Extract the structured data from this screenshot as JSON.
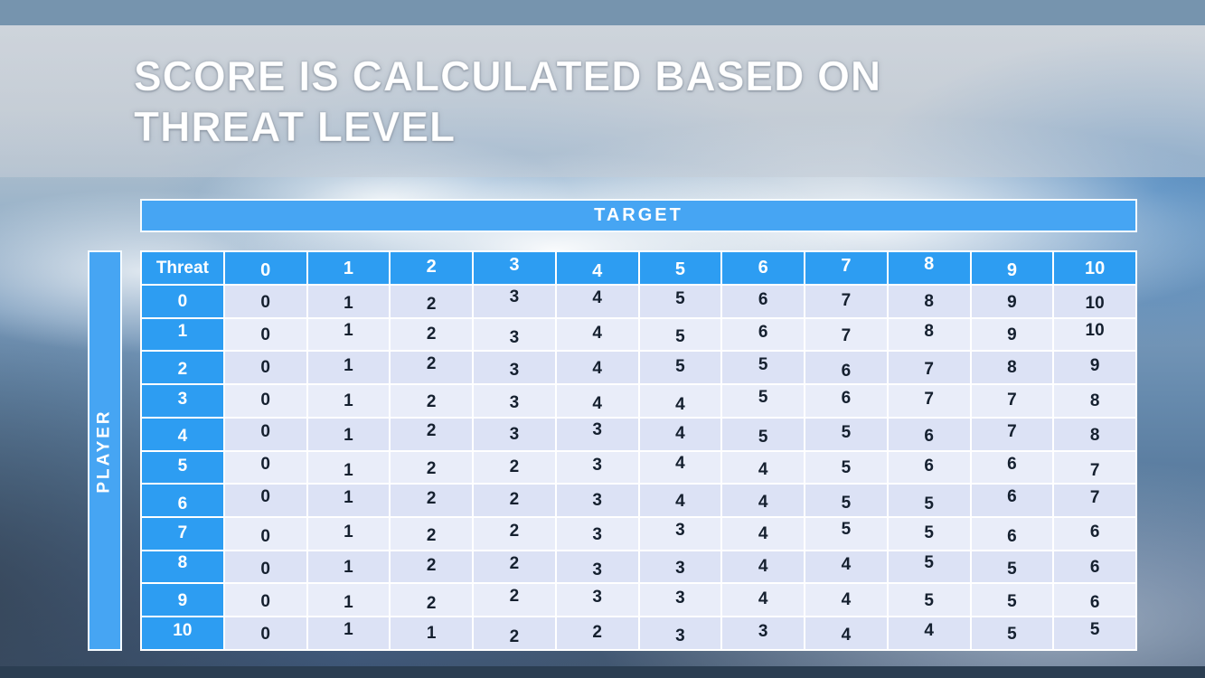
{
  "slide": {
    "title": "SCORE IS CALCULATED BASED ON THREAT LEVEL"
  },
  "chart_data": {
    "type": "table",
    "title": "SCORE IS CALCULATED BASED ON THREAT LEVEL",
    "top_axis_label": "TARGET",
    "left_axis_label": "PLAYER",
    "corner_label": "Threat",
    "col_headers": [
      0,
      1,
      2,
      3,
      4,
      5,
      6,
      7,
      8,
      9,
      10
    ],
    "rows": [
      {
        "label": 0,
        "values": [
          0,
          1,
          2,
          3,
          4,
          5,
          6,
          7,
          8,
          9,
          10
        ]
      },
      {
        "label": 1,
        "values": [
          0,
          1,
          2,
          3,
          4,
          5,
          6,
          7,
          8,
          9,
          10
        ]
      },
      {
        "label": 2,
        "values": [
          0,
          1,
          2,
          3,
          4,
          5,
          5,
          6,
          7,
          8,
          9
        ]
      },
      {
        "label": 3,
        "values": [
          0,
          1,
          2,
          3,
          4,
          4,
          5,
          6,
          7,
          7,
          8
        ]
      },
      {
        "label": 4,
        "values": [
          0,
          1,
          2,
          3,
          3,
          4,
          5,
          5,
          6,
          7,
          8
        ]
      },
      {
        "label": 5,
        "values": [
          0,
          1,
          2,
          2,
          3,
          4,
          4,
          5,
          6,
          6,
          7
        ]
      },
      {
        "label": 6,
        "values": [
          0,
          1,
          2,
          2,
          3,
          4,
          4,
          5,
          5,
          6,
          7
        ]
      },
      {
        "label": 7,
        "values": [
          0,
          1,
          2,
          2,
          3,
          3,
          4,
          5,
          5,
          6,
          6
        ]
      },
      {
        "label": 8,
        "values": [
          0,
          1,
          2,
          2,
          3,
          3,
          4,
          4,
          5,
          5,
          6
        ]
      },
      {
        "label": 9,
        "values": [
          0,
          1,
          2,
          2,
          3,
          3,
          4,
          4,
          5,
          5,
          6
        ]
      },
      {
        "label": 10,
        "values": [
          0,
          1,
          1,
          2,
          2,
          3,
          3,
          4,
          4,
          5,
          5
        ]
      }
    ]
  },
  "colors": {
    "accent_blue": "#46a5f3",
    "header_blue": "#2d9df2",
    "row_dark": "#dce2f5",
    "row_light": "#e9edf9",
    "body_text": "#15202f",
    "top_bar": "#7694ae",
    "bottom_bar": "#2b3e52"
  }
}
